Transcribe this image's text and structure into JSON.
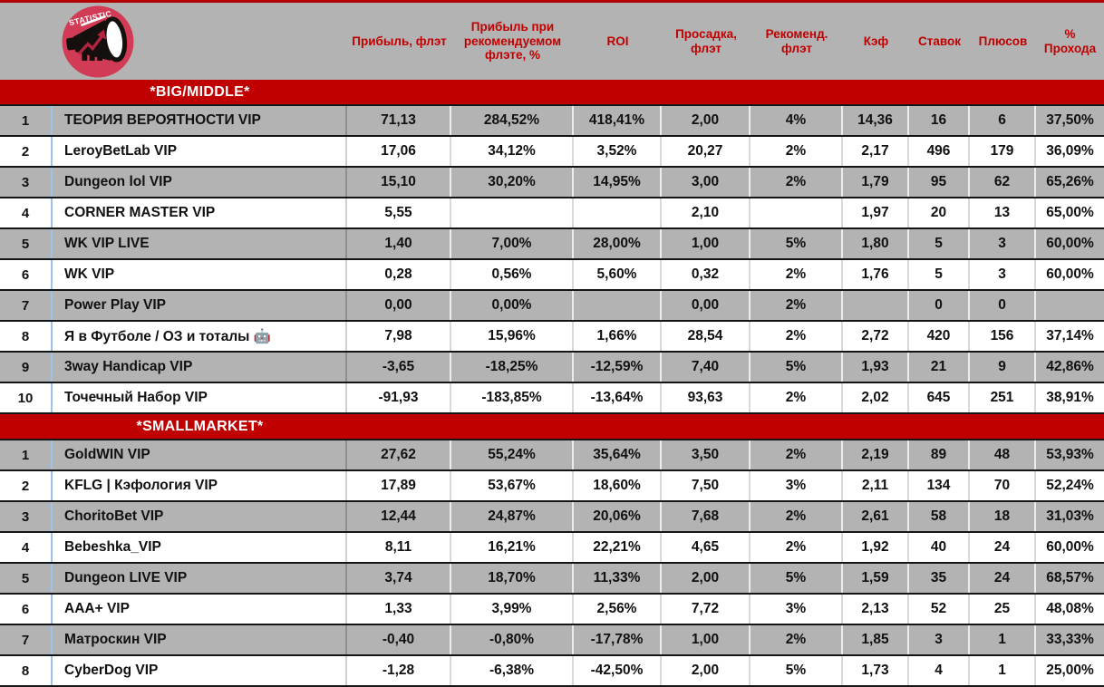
{
  "header": {
    "logo_text": "STATISTIC",
    "columns": [
      "Прибыль, флэт",
      "Прибыль при рекомендуемом флэте, %",
      "ROI",
      "Просадка, флэт",
      "Рекоменд. флэт",
      "Кэф",
      "Ставок",
      "Плюсов",
      "% Прохода"
    ],
    "column_keys": [
      "profit-flat",
      "profit-at-recommended-flat",
      "roi",
      "drawdown-flat",
      "recommended-flat",
      "odds",
      "bets",
      "pluses",
      "pass-rate"
    ]
  },
  "sections": [
    {
      "title": "*BIG/MIDDLE*",
      "key": "big-middle",
      "rows": [
        {
          "rank": "1",
          "name": "ТЕОРИЯ ВЕРОЯТНОСТИ VIP",
          "values": [
            "71,13",
            "284,52%",
            "418,41%",
            "2,00",
            "4%",
            "14,36",
            "16",
            "6",
            "37,50%"
          ]
        },
        {
          "rank": "2",
          "name": "LeroyBetLab VIP",
          "values": [
            "17,06",
            "34,12%",
            "3,52%",
            "20,27",
            "2%",
            "2,17",
            "496",
            "179",
            "36,09%"
          ]
        },
        {
          "rank": "3",
          "name": "Dungeon lol VIP",
          "values": [
            "15,10",
            "30,20%",
            "14,95%",
            "3,00",
            "2%",
            "1,79",
            "95",
            "62",
            "65,26%"
          ]
        },
        {
          "rank": "4",
          "name": "CORNER MASTER VIP",
          "values": [
            "5,55",
            "",
            "",
            "2,10",
            "",
            "1,97",
            "20",
            "13",
            "65,00%"
          ]
        },
        {
          "rank": "5",
          "name": "WK VIP LIVE",
          "values": [
            "1,40",
            "7,00%",
            "28,00%",
            "1,00",
            "5%",
            "1,80",
            "5",
            "3",
            "60,00%"
          ]
        },
        {
          "rank": "6",
          "name": "WK VIP",
          "values": [
            "0,28",
            "0,56%",
            "5,60%",
            "0,32",
            "2%",
            "1,76",
            "5",
            "3",
            "60,00%"
          ]
        },
        {
          "rank": "7",
          "name": "Power Play VIP",
          "values": [
            "0,00",
            "0,00%",
            "",
            "0,00",
            "2%",
            "",
            "0",
            "0",
            ""
          ]
        },
        {
          "rank": "8",
          "name": "Я в Футболе / ОЗ и тоталы 🤖",
          "values": [
            "7,98",
            "15,96%",
            "1,66%",
            "28,54",
            "2%",
            "2,72",
            "420",
            "156",
            "37,14%"
          ]
        },
        {
          "rank": "9",
          "name": "3way Handicap VIP",
          "values": [
            "-3,65",
            "-18,25%",
            "-12,59%",
            "7,40",
            "5%",
            "1,93",
            "21",
            "9",
            "42,86%"
          ]
        },
        {
          "rank": "10",
          "name": "Точечный Набор VIP",
          "values": [
            "-91,93",
            "-183,85%",
            "-13,64%",
            "93,63",
            "2%",
            "2,02",
            "645",
            "251",
            "38,91%"
          ]
        }
      ]
    },
    {
      "title": "*SMALLMARKET*",
      "key": "smallmarket",
      "rows": [
        {
          "rank": "1",
          "name": "GoldWIN VIP",
          "values": [
            "27,62",
            "55,24%",
            "35,64%",
            "3,50",
            "2%",
            "2,19",
            "89",
            "48",
            "53,93%"
          ]
        },
        {
          "rank": "2",
          "name": "KFLG | Кэфология VIP",
          "values": [
            "17,89",
            "53,67%",
            "18,60%",
            "7,50",
            "3%",
            "2,11",
            "134",
            "70",
            "52,24%"
          ]
        },
        {
          "rank": "3",
          "name": "ChoritoBet VIP",
          "values": [
            "12,44",
            "24,87%",
            "20,06%",
            "7,68",
            "2%",
            "2,61",
            "58",
            "18",
            "31,03%"
          ]
        },
        {
          "rank": "4",
          "name": "Bebeshka_VIP",
          "values": [
            "8,11",
            "16,21%",
            "22,21%",
            "4,65",
            "2%",
            "1,92",
            "40",
            "24",
            "60,00%"
          ]
        },
        {
          "rank": "5",
          "name": "Dungeon LIVE VIP",
          "values": [
            "3,74",
            "18,70%",
            "11,33%",
            "2,00",
            "5%",
            "1,59",
            "35",
            "24",
            "68,57%"
          ]
        },
        {
          "rank": "6",
          "name": "AAA+ VIP",
          "values": [
            "1,33",
            "3,99%",
            "2,56%",
            "7,72",
            "3%",
            "2,13",
            "52",
            "25",
            "48,08%"
          ]
        },
        {
          "rank": "7",
          "name": "Матроскин VIP",
          "values": [
            "-0,40",
            "-0,80%",
            "-17,78%",
            "1,00",
            "2%",
            "1,85",
            "3",
            "1",
            "33,33%"
          ]
        },
        {
          "rank": "8",
          "name": "CyberDog VIP",
          "values": [
            "-1,28",
            "-6,38%",
            "-42,50%",
            "2,00",
            "5%",
            "1,73",
            "4",
            "1",
            "25,00%"
          ]
        }
      ]
    }
  ],
  "colors": {
    "accent_red": "#c00000",
    "header_gray": "#b3b3b3",
    "row_gray": "#b3b3b3",
    "row_white": "#ffffff",
    "rank_divider_blue": "#9dc3e6",
    "row_border_black": "#151515",
    "logo_circle": "#d23b55",
    "section_text": "#ffffff",
    "column_header_text": "#c00000"
  }
}
